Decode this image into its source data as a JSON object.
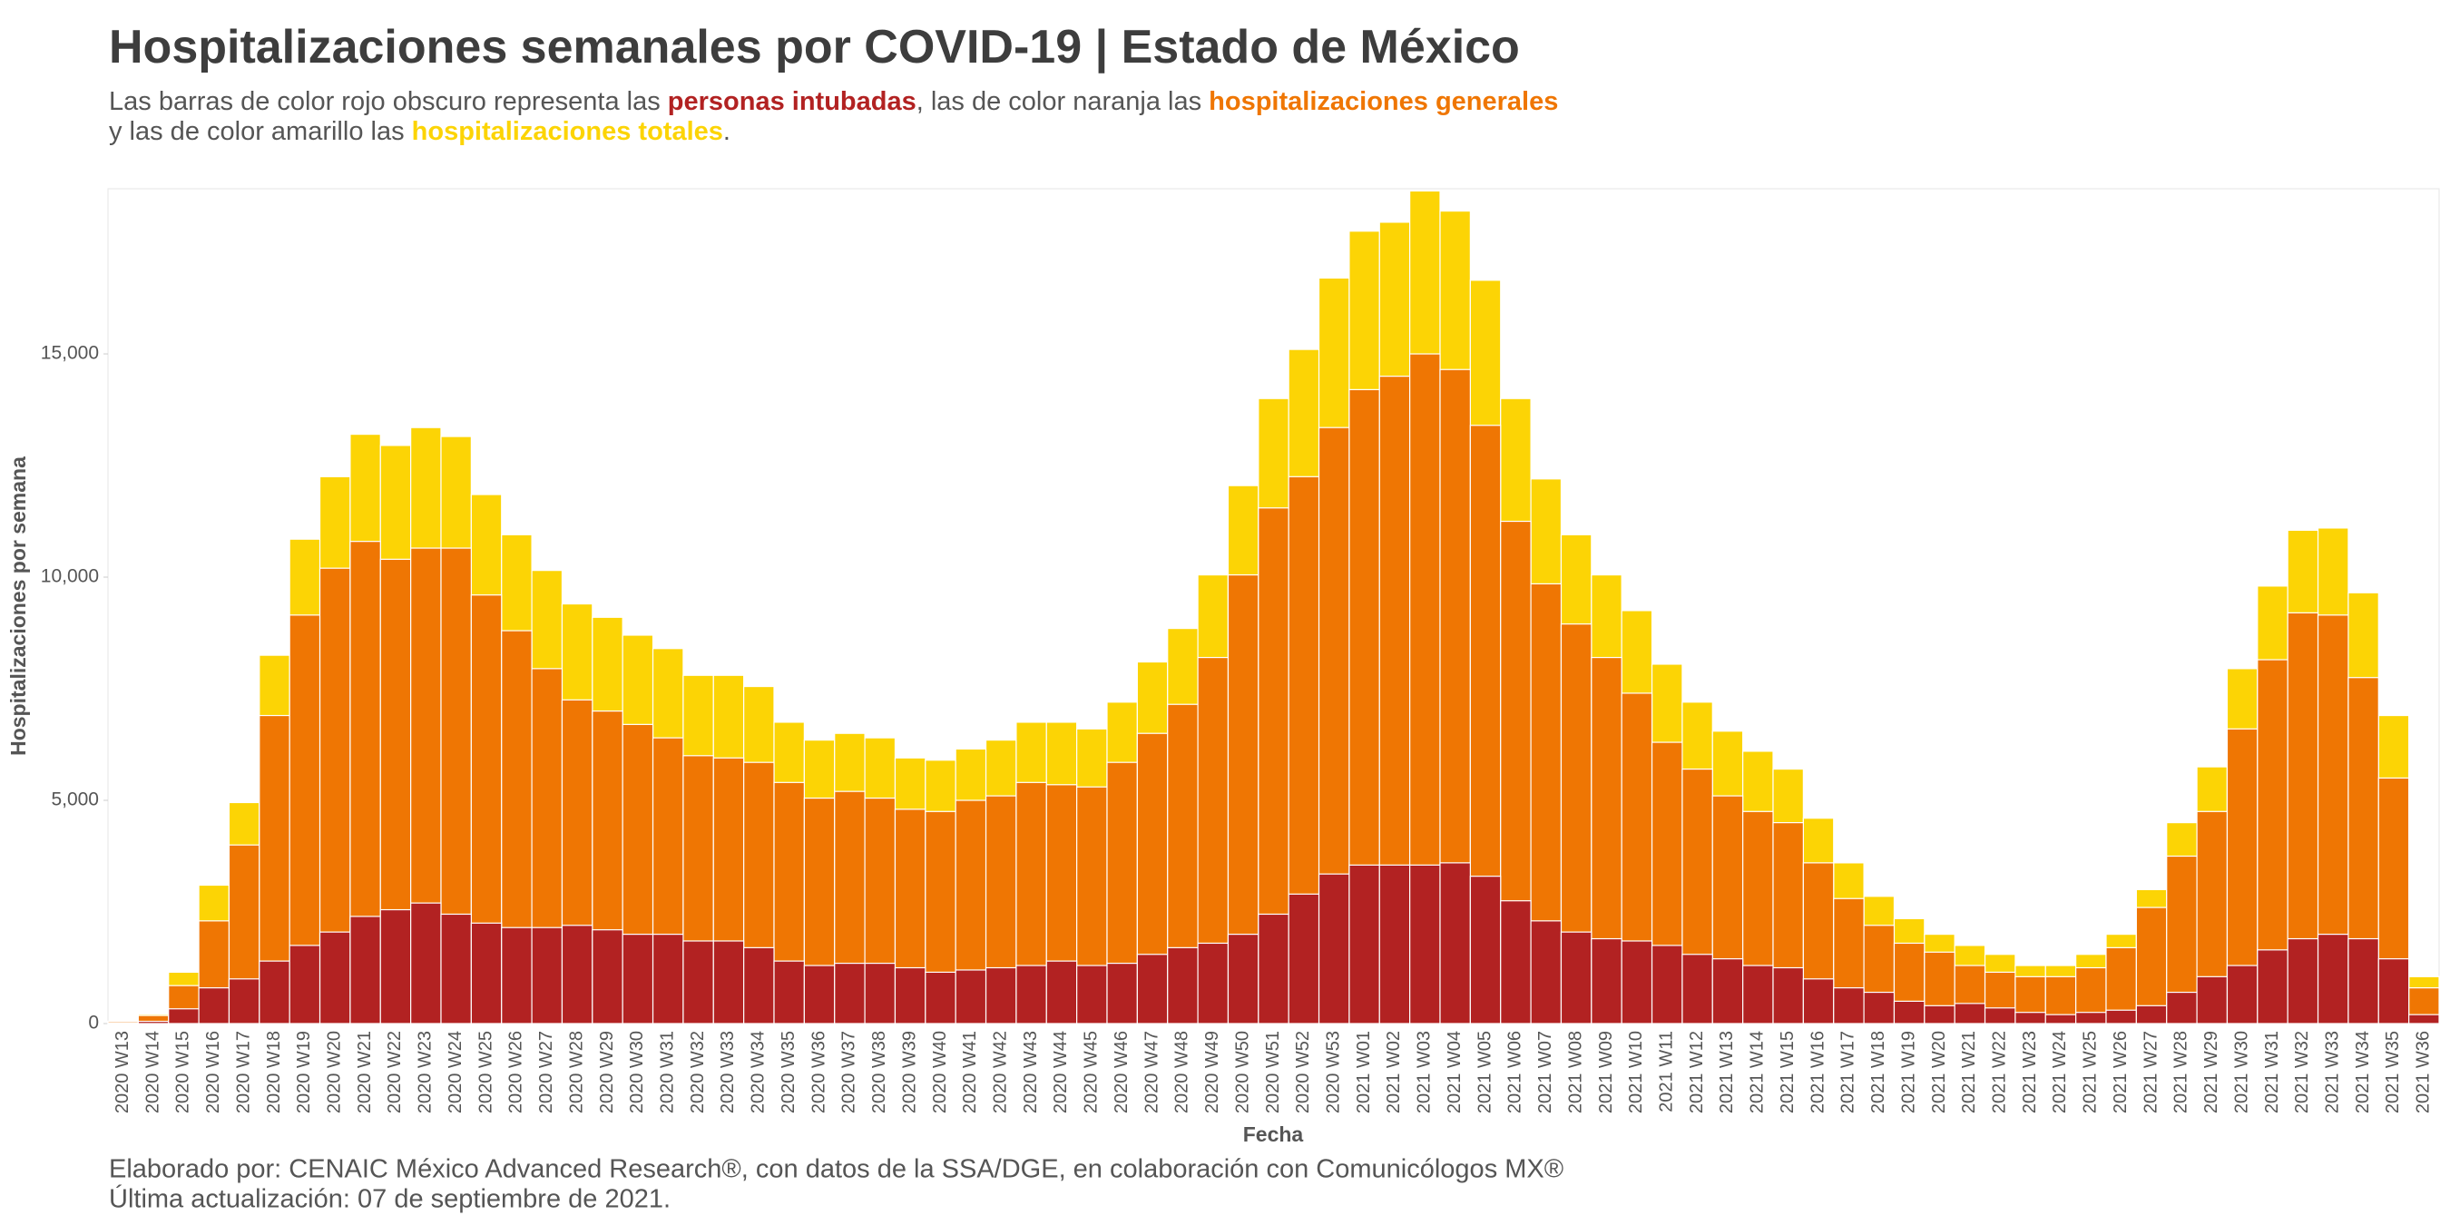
{
  "chart_data": {
    "type": "bar",
    "title": "Hospitalizaciones semanales por COVID-19 | Estado de México",
    "subtitle": [
      "Las barras de color rojo obscuro representa las ",
      ", las de color naranja las ",
      "y las de color amarillo las ",
      "."
    ],
    "x_label": "Fecha",
    "y_label": "Hospitalizaciones por semana",
    "footer": [
      "Elaborado por: CENAIC México Advanced Research®, con datos de la SSA/DGE, en colaboración con Comunicólogos MX®",
      "Última actualización: 07 de septiembre de 2021."
    ],
    "categories": [
      "2020 W13",
      "2020 W14",
      "2020 W15",
      "2020 W16",
      "2020 W17",
      "2020 W18",
      "2020 W19",
      "2020 W20",
      "2020 W21",
      "2020 W22",
      "2020 W23",
      "2020 W24",
      "2020 W25",
      "2020 W26",
      "2020 W27",
      "2020 W28",
      "2020 W29",
      "2020 W30",
      "2020 W31",
      "2020 W32",
      "2020 W33",
      "2020 W34",
      "2020 W35",
      "2020 W36",
      "2020 W37",
      "2020 W38",
      "2020 W39",
      "2020 W40",
      "2020 W41",
      "2020 W42",
      "2020 W43",
      "2020 W44",
      "2020 W45",
      "2020 W46",
      "2020 W47",
      "2020 W48",
      "2020 W49",
      "2020 W50",
      "2020 W51",
      "2020 W52",
      "2020 W53",
      "2021 W01",
      "2021 W02",
      "2021 W03",
      "2021 W04",
      "2021 W05",
      "2021 W06",
      "2021 W07",
      "2021 W08",
      "2021 W09",
      "2021 W10",
      "2021 W11",
      "2021 W12",
      "2021 W13",
      "2021 W14",
      "2021 W15",
      "2021 W16",
      "2021 W17",
      "2021 W18",
      "2021 W19",
      "2021 W20",
      "2021 W21",
      "2021 W22",
      "2021 W23",
      "2021 W24",
      "2021 W25",
      "2021 W26",
      "2021 W27",
      "2021 W28",
      "2021 W29",
      "2021 W30",
      "2021 W31",
      "2021 W32",
      "2021 W33",
      "2021 W34",
      "2021 W35",
      "2021 W36"
    ],
    "series": [
      {
        "name": "hospitalizaciones totales",
        "color": "#fcd405",
        "values": [
          50,
          210,
          1150,
          3100,
          4950,
          8250,
          10850,
          12250,
          13200,
          12950,
          13350,
          13150,
          11850,
          10950,
          10150,
          9400,
          9100,
          8700,
          8400,
          7800,
          7800,
          7550,
          6750,
          6350,
          6500,
          6400,
          5950,
          5900,
          6150,
          6350,
          6750,
          6750,
          6600,
          7200,
          8100,
          8850,
          10050,
          12050,
          14000,
          15100,
          16700,
          17750,
          17950,
          18650,
          18200,
          16650,
          14000,
          12200,
          10950,
          10050,
          9250,
          8050,
          7200,
          6550,
          6100,
          5700,
          4600,
          3600,
          2850,
          2350,
          2000,
          1750,
          1550,
          1300,
          1300,
          1550,
          2000,
          3000,
          4500,
          5750,
          7950,
          9800,
          11050,
          11100,
          9650,
          6900,
          1050
        ]
      },
      {
        "name": "hospitalizaciones generales",
        "color": "#ef7603",
        "values": [
          40,
          180,
          850,
          2300,
          4000,
          6900,
          9150,
          10200,
          10800,
          10400,
          10650,
          10650,
          9600,
          8800,
          7950,
          7250,
          7000,
          6700,
          6400,
          6000,
          5950,
          5850,
          5400,
          5050,
          5200,
          5050,
          4800,
          4750,
          5000,
          5100,
          5400,
          5350,
          5300,
          5850,
          6500,
          7150,
          8200,
          10050,
          11550,
          12250,
          13350,
          14200,
          14500,
          15000,
          14650,
          13400,
          11250,
          9850,
          8950,
          8200,
          7400,
          6300,
          5700,
          5100,
          4750,
          4500,
          3600,
          2800,
          2200,
          1800,
          1600,
          1300,
          1150,
          1050,
          1050,
          1250,
          1700,
          2600,
          3750,
          4750,
          6600,
          8150,
          9200,
          9150,
          7750,
          5500,
          800
        ]
      },
      {
        "name": "personas intubadas",
        "color": "#b22222",
        "values": [
          10,
          50,
          330,
          800,
          1000,
          1400,
          1750,
          2050,
          2400,
          2550,
          2700,
          2450,
          2250,
          2150,
          2150,
          2200,
          2100,
          2000,
          2000,
          1850,
          1850,
          1700,
          1400,
          1300,
          1350,
          1350,
          1250,
          1150,
          1200,
          1250,
          1300,
          1400,
          1300,
          1350,
          1550,
          1700,
          1800,
          2000,
          2450,
          2900,
          3350,
          3550,
          3550,
          3550,
          3600,
          3300,
          2750,
          2300,
          2050,
          1900,
          1850,
          1750,
          1550,
          1450,
          1300,
          1250,
          1000,
          800,
          700,
          500,
          400,
          450,
          350,
          250,
          200,
          250,
          300,
          400,
          700,
          1050,
          1300,
          1650,
          1900,
          2000,
          1900,
          1450,
          200
        ]
      }
    ],
    "ylim": [
      0,
      18700
    ],
    "yticks": [
      0,
      {
        "value": 5000,
        "label": "5,000"
      },
      {
        "value": 10000,
        "label": "10,000"
      },
      {
        "value": 15000,
        "label": "15,000"
      }
    ],
    "grid": false
  }
}
